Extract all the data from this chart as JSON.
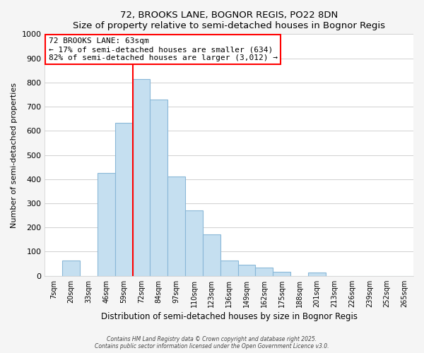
{
  "title": "72, BROOKS LANE, BOGNOR REGIS, PO22 8DN",
  "subtitle": "Size of property relative to semi-detached houses in Bognor Regis",
  "xlabel": "Distribution of semi-detached houses by size in Bognor Regis",
  "ylabel": "Number of semi-detached properties",
  "bin_labels": [
    "7sqm",
    "20sqm",
    "33sqm",
    "46sqm",
    "59sqm",
    "72sqm",
    "84sqm",
    "97sqm",
    "110sqm",
    "123sqm",
    "136sqm",
    "149sqm",
    "162sqm",
    "175sqm",
    "188sqm",
    "201sqm",
    "213sqm",
    "226sqm",
    "239sqm",
    "252sqm",
    "265sqm"
  ],
  "bar_values": [
    0,
    63,
    0,
    425,
    634,
    813,
    730,
    410,
    270,
    170,
    63,
    45,
    35,
    17,
    0,
    15,
    0,
    0,
    0,
    0,
    0
  ],
  "bar_color": "#c5dff0",
  "bar_edge_color": "#8ab8d8",
  "highlight_line_index": 5,
  "highlight_color": "red",
  "annotation_title": "72 BROOKS LANE: 63sqm",
  "annotation_line1": "← 17% of semi-detached houses are smaller (634)",
  "annotation_line2": "82% of semi-detached houses are larger (3,012) →",
  "annotation_box_color": "white",
  "annotation_box_edge_color": "red",
  "ylim": [
    0,
    1000
  ],
  "yticks": [
    0,
    100,
    200,
    300,
    400,
    500,
    600,
    700,
    800,
    900,
    1000
  ],
  "footer_line1": "Contains HM Land Registry data © Crown copyright and database right 2025.",
  "footer_line2": "Contains public sector information licensed under the Open Government Licence v3.0.",
  "background_color": "#f5f5f5",
  "plot_bg_color": "#ffffff",
  "grid_color": "#d0d0d0"
}
